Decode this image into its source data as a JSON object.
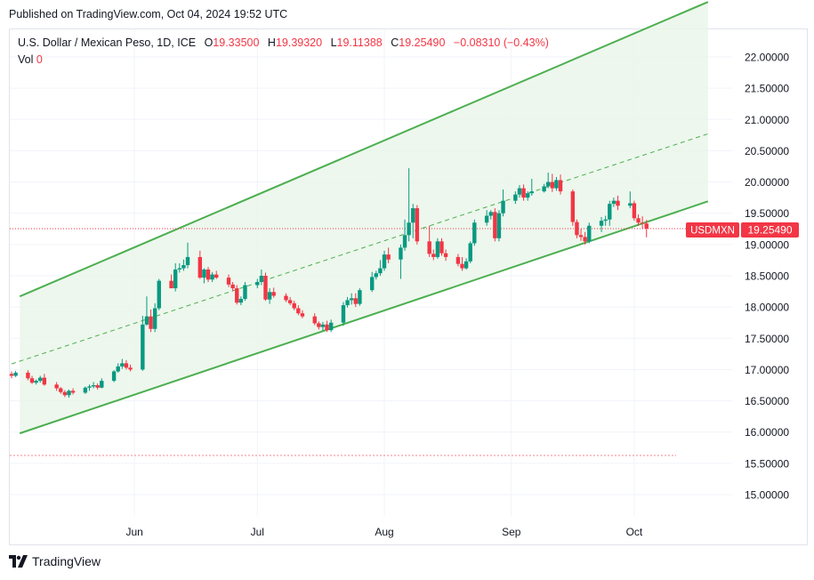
{
  "header": {
    "published": "Published on TradingView.com, Oct 04, 2024 19:52 UTC"
  },
  "legend": {
    "symbol": "U.S. Dollar / Mexican Peso, 1D, ICE",
    "o_label": "O",
    "o": "19.33500",
    "h_label": "H",
    "h": "19.39320",
    "l_label": "L",
    "l": "19.11388",
    "c_label": "C",
    "c": "19.25490",
    "change": "−0.08310 (−0.43%)",
    "vol_label": "Vol",
    "vol": "0"
  },
  "price_tag": {
    "ticker": "USDMXN",
    "price": "19.25490"
  },
  "footer": {
    "brand": "TradingView",
    "logo_icon": "tradingview-logo-icon"
  },
  "colors": {
    "up": "#089981",
    "down": "#f23645",
    "channel": "#4caf50",
    "channel_fill": "#e8f5e9",
    "grid": "#f0f3fa"
  },
  "chart_data": {
    "type": "candlestick",
    "interval": "1D",
    "y_axis": {
      "min": 15.0,
      "max": 22.0,
      "ticks": [
        "22.00000",
        "21.50000",
        "21.00000",
        "20.50000",
        "20.00000",
        "19.50000",
        "19.00000",
        "18.50000",
        "18.00000",
        "17.50000",
        "17.00000",
        "16.50000",
        "16.00000",
        "15.50000",
        "15.00000"
      ]
    },
    "x_axis": {
      "range": [
        "2024-05-02",
        "2024-10-21"
      ],
      "ticks": [
        {
          "label": "Jun",
          "date": "2024-06-01"
        },
        {
          "label": "Jul",
          "date": "2024-07-01"
        },
        {
          "label": "Aug",
          "date": "2024-08-01"
        },
        {
          "label": "Sep",
          "date": "2024-09-01"
        },
        {
          "label": "Oct",
          "date": "2024-10-01"
        }
      ]
    },
    "grid": true,
    "channel": {
      "upper": [
        {
          "date": "2024-05-04",
          "value": 18.17
        },
        {
          "date": "2024-10-19",
          "value": 22.88
        }
      ],
      "middle": [
        {
          "date": "2024-05-02",
          "value": 17.09
        },
        {
          "date": "2024-10-19",
          "value": 20.77
        }
      ],
      "lower": [
        {
          "date": "2024-05-04",
          "value": 15.98
        },
        {
          "date": "2024-10-19",
          "value": 19.69
        }
      ]
    },
    "last_price_line": 19.2549,
    "candles": [
      {
        "date": "2024-05-02",
        "o": 16.93,
        "h": 16.97,
        "l": 16.86,
        "c": 16.9
      },
      {
        "date": "2024-05-03",
        "o": 16.9,
        "h": 16.98,
        "l": 16.88,
        "c": 16.95
      },
      {
        "date": "2024-05-06",
        "o": 16.95,
        "h": 16.99,
        "l": 16.83,
        "c": 16.86
      },
      {
        "date": "2024-05-07",
        "o": 16.86,
        "h": 16.9,
        "l": 16.77,
        "c": 16.79
      },
      {
        "date": "2024-05-08",
        "o": 16.79,
        "h": 16.84,
        "l": 16.76,
        "c": 16.82
      },
      {
        "date": "2024-05-09",
        "o": 16.82,
        "h": 16.9,
        "l": 16.79,
        "c": 16.87
      },
      {
        "date": "2024-05-10",
        "o": 16.87,
        "h": 16.93,
        "l": 16.74,
        "c": 16.76
      },
      {
        "date": "2024-05-13",
        "o": 16.76,
        "h": 16.8,
        "l": 16.66,
        "c": 16.7
      },
      {
        "date": "2024-05-14",
        "o": 16.7,
        "h": 16.72,
        "l": 16.61,
        "c": 16.64
      },
      {
        "date": "2024-05-15",
        "o": 16.64,
        "h": 16.67,
        "l": 16.56,
        "c": 16.59
      },
      {
        "date": "2024-05-16",
        "o": 16.59,
        "h": 16.68,
        "l": 16.55,
        "c": 16.66
      },
      {
        "date": "2024-05-17",
        "o": 16.66,
        "h": 16.7,
        "l": 16.6,
        "c": 16.63
      },
      {
        "date": "2024-05-20",
        "o": 16.63,
        "h": 16.73,
        "l": 16.61,
        "c": 16.71
      },
      {
        "date": "2024-05-21",
        "o": 16.71,
        "h": 16.76,
        "l": 16.66,
        "c": 16.73
      },
      {
        "date": "2024-05-22",
        "o": 16.73,
        "h": 16.8,
        "l": 16.7,
        "c": 16.75
      },
      {
        "date": "2024-05-23",
        "o": 16.75,
        "h": 16.78,
        "l": 16.68,
        "c": 16.71
      },
      {
        "date": "2024-05-24",
        "o": 16.71,
        "h": 16.86,
        "l": 16.7,
        "c": 16.82
      },
      {
        "date": "2024-05-27",
        "o": 16.82,
        "h": 16.99,
        "l": 16.8,
        "c": 16.97
      },
      {
        "date": "2024-05-28",
        "o": 16.97,
        "h": 17.1,
        "l": 16.95,
        "c": 17.05
      },
      {
        "date": "2024-05-29",
        "o": 17.05,
        "h": 17.17,
        "l": 17.01,
        "c": 17.1
      },
      {
        "date": "2024-05-30",
        "o": 17.1,
        "h": 17.15,
        "l": 17.0,
        "c": 17.03
      },
      {
        "date": "2024-05-31",
        "o": 17.03,
        "h": 17.08,
        "l": 16.97,
        "c": 17.0
      },
      {
        "date": "2024-06-03",
        "o": 17.0,
        "h": 17.86,
        "l": 16.98,
        "c": 17.72
      },
      {
        "date": "2024-06-04",
        "o": 17.72,
        "h": 18.17,
        "l": 17.7,
        "c": 17.85
      },
      {
        "date": "2024-06-05",
        "o": 17.85,
        "h": 17.96,
        "l": 17.6,
        "c": 17.65
      },
      {
        "date": "2024-06-06",
        "o": 17.65,
        "h": 18.06,
        "l": 17.6,
        "c": 17.98
      },
      {
        "date": "2024-06-07",
        "o": 17.98,
        "h": 18.45,
        "l": 17.95,
        "c": 18.42
      },
      {
        "date": "2024-06-10",
        "o": 18.42,
        "h": 18.52,
        "l": 18.3,
        "c": 18.3
      },
      {
        "date": "2024-06-11",
        "o": 18.3,
        "h": 18.7,
        "l": 18.25,
        "c": 18.6
      },
      {
        "date": "2024-06-12",
        "o": 18.6,
        "h": 18.7,
        "l": 18.55,
        "c": 18.62
      },
      {
        "date": "2024-06-13",
        "o": 18.62,
        "h": 18.76,
        "l": 18.58,
        "c": 18.67
      },
      {
        "date": "2024-06-14",
        "o": 18.67,
        "h": 19.03,
        "l": 18.62,
        "c": 18.8
      },
      {
        "date": "2024-06-17",
        "o": 18.8,
        "h": 18.9,
        "l": 18.45,
        "c": 18.47
      },
      {
        "date": "2024-06-18",
        "o": 18.47,
        "h": 18.62,
        "l": 18.38,
        "c": 18.6
      },
      {
        "date": "2024-06-19",
        "o": 18.6,
        "h": 18.64,
        "l": 18.4,
        "c": 18.44
      },
      {
        "date": "2024-06-20",
        "o": 18.44,
        "h": 18.56,
        "l": 18.4,
        "c": 18.52
      },
      {
        "date": "2024-06-21",
        "o": 18.52,
        "h": 18.58,
        "l": 18.45,
        "c": 18.47
      },
      {
        "date": "2024-06-24",
        "o": 18.47,
        "h": 18.52,
        "l": 18.32,
        "c": 18.36
      },
      {
        "date": "2024-06-25",
        "o": 18.36,
        "h": 18.4,
        "l": 18.26,
        "c": 18.3
      },
      {
        "date": "2024-06-26",
        "o": 18.3,
        "h": 18.35,
        "l": 18.04,
        "c": 18.07
      },
      {
        "date": "2024-06-27",
        "o": 18.07,
        "h": 18.17,
        "l": 18.03,
        "c": 18.13
      },
      {
        "date": "2024-06-28",
        "o": 18.13,
        "h": 18.4,
        "l": 18.1,
        "c": 18.35
      },
      {
        "date": "2024-07-01",
        "o": 18.35,
        "h": 18.45,
        "l": 18.3,
        "c": 18.4
      },
      {
        "date": "2024-07-02",
        "o": 18.4,
        "h": 18.6,
        "l": 18.35,
        "c": 18.5
      },
      {
        "date": "2024-07-03",
        "o": 18.5,
        "h": 18.55,
        "l": 18.1,
        "c": 18.12
      },
      {
        "date": "2024-07-04",
        "o": 18.12,
        "h": 18.3,
        "l": 18.05,
        "c": 18.24
      },
      {
        "date": "2024-07-05",
        "o": 18.24,
        "h": 18.31,
        "l": 18.15,
        "c": 18.18
      },
      {
        "date": "2024-07-08",
        "o": 18.18,
        "h": 18.22,
        "l": 18.08,
        "c": 18.11
      },
      {
        "date": "2024-07-09",
        "o": 18.11,
        "h": 18.16,
        "l": 18.03,
        "c": 18.06
      },
      {
        "date": "2024-07-10",
        "o": 18.06,
        "h": 18.1,
        "l": 17.95,
        "c": 17.98
      },
      {
        "date": "2024-07-11",
        "o": 17.98,
        "h": 18.03,
        "l": 17.87,
        "c": 17.9
      },
      {
        "date": "2024-07-12",
        "o": 17.9,
        "h": 17.95,
        "l": 17.82,
        "c": 17.85
      },
      {
        "date": "2024-07-15",
        "o": 17.85,
        "h": 17.9,
        "l": 17.71,
        "c": 17.74
      },
      {
        "date": "2024-07-16",
        "o": 17.74,
        "h": 17.77,
        "l": 17.64,
        "c": 17.68
      },
      {
        "date": "2024-07-17",
        "o": 17.68,
        "h": 17.76,
        "l": 17.62,
        "c": 17.72
      },
      {
        "date": "2024-07-18",
        "o": 17.72,
        "h": 17.78,
        "l": 17.6,
        "c": 17.63
      },
      {
        "date": "2024-07-19",
        "o": 17.63,
        "h": 17.8,
        "l": 17.6,
        "c": 17.75
      },
      {
        "date": "2024-07-22",
        "o": 17.75,
        "h": 18.08,
        "l": 17.7,
        "c": 18.03
      },
      {
        "date": "2024-07-23",
        "o": 18.03,
        "h": 18.16,
        "l": 17.99,
        "c": 18.11
      },
      {
        "date": "2024-07-24",
        "o": 18.11,
        "h": 18.22,
        "l": 18.04,
        "c": 18.14
      },
      {
        "date": "2024-07-25",
        "o": 18.14,
        "h": 18.22,
        "l": 18.0,
        "c": 18.05
      },
      {
        "date": "2024-07-26",
        "o": 18.05,
        "h": 18.3,
        "l": 18.02,
        "c": 18.27
      },
      {
        "date": "2024-07-29",
        "o": 18.27,
        "h": 18.56,
        "l": 18.24,
        "c": 18.48
      },
      {
        "date": "2024-07-30",
        "o": 18.48,
        "h": 18.58,
        "l": 18.44,
        "c": 18.54
      },
      {
        "date": "2024-07-31",
        "o": 18.54,
        "h": 18.75,
        "l": 18.5,
        "c": 18.62
      },
      {
        "date": "2024-08-01",
        "o": 18.62,
        "h": 18.9,
        "l": 18.58,
        "c": 18.84
      },
      {
        "date": "2024-08-02",
        "o": 18.84,
        "h": 18.95,
        "l": 18.7,
        "c": 18.76
      },
      {
        "date": "2024-08-05",
        "o": 18.76,
        "h": 19.0,
        "l": 18.45,
        "c": 18.95
      },
      {
        "date": "2024-08-06",
        "o": 18.95,
        "h": 19.4,
        "l": 18.9,
        "c": 19.15
      },
      {
        "date": "2024-08-07",
        "o": 19.15,
        "h": 20.22,
        "l": 19.05,
        "c": 19.35
      },
      {
        "date": "2024-08-08",
        "o": 19.35,
        "h": 19.65,
        "l": 19.1,
        "c": 19.58
      },
      {
        "date": "2024-08-09",
        "o": 19.58,
        "h": 19.63,
        "l": 19.0,
        "c": 19.05
      },
      {
        "date": "2024-08-12",
        "o": 19.05,
        "h": 19.3,
        "l": 18.8,
        "c": 18.85
      },
      {
        "date": "2024-08-13",
        "o": 18.85,
        "h": 18.92,
        "l": 18.75,
        "c": 18.8
      },
      {
        "date": "2024-08-14",
        "o": 18.8,
        "h": 19.1,
        "l": 18.77,
        "c": 19.05
      },
      {
        "date": "2024-08-15",
        "o": 19.05,
        "h": 19.1,
        "l": 18.82,
        "c": 18.86
      },
      {
        "date": "2024-08-16",
        "o": 18.86,
        "h": 18.92,
        "l": 18.74,
        "c": 18.8
      },
      {
        "date": "2024-08-19",
        "o": 18.8,
        "h": 18.85,
        "l": 18.65,
        "c": 18.69
      },
      {
        "date": "2024-08-20",
        "o": 18.69,
        "h": 18.8,
        "l": 18.58,
        "c": 18.62
      },
      {
        "date": "2024-08-21",
        "o": 18.62,
        "h": 18.78,
        "l": 18.6,
        "c": 18.73
      },
      {
        "date": "2024-08-22",
        "o": 18.73,
        "h": 19.05,
        "l": 18.7,
        "c": 19.02
      },
      {
        "date": "2024-08-23",
        "o": 19.02,
        "h": 19.4,
        "l": 18.98,
        "c": 19.35
      },
      {
        "date": "2024-08-26",
        "o": 19.35,
        "h": 19.55,
        "l": 19.3,
        "c": 19.46
      },
      {
        "date": "2024-08-27",
        "o": 19.46,
        "h": 19.55,
        "l": 19.4,
        "c": 19.52
      },
      {
        "date": "2024-08-28",
        "o": 19.52,
        "h": 19.58,
        "l": 19.05,
        "c": 19.1
      },
      {
        "date": "2024-08-29",
        "o": 19.1,
        "h": 19.55,
        "l": 19.05,
        "c": 19.5
      },
      {
        "date": "2024-08-30",
        "o": 19.5,
        "h": 19.88,
        "l": 19.45,
        "c": 19.7
      },
      {
        "date": "2024-09-02",
        "o": 19.7,
        "h": 19.85,
        "l": 19.65,
        "c": 19.8
      },
      {
        "date": "2024-09-03",
        "o": 19.8,
        "h": 19.95,
        "l": 19.75,
        "c": 19.9
      },
      {
        "date": "2024-09-04",
        "o": 19.9,
        "h": 19.96,
        "l": 19.7,
        "c": 19.75
      },
      {
        "date": "2024-09-05",
        "o": 19.75,
        "h": 19.85,
        "l": 19.7,
        "c": 19.82
      },
      {
        "date": "2024-09-06",
        "o": 19.82,
        "h": 20.05,
        "l": 19.78,
        "c": 19.85
      },
      {
        "date": "2024-09-09",
        "o": 19.85,
        "h": 19.97,
        "l": 19.83,
        "c": 19.93
      },
      {
        "date": "2024-09-10",
        "o": 19.93,
        "h": 20.15,
        "l": 19.9,
        "c": 20.0
      },
      {
        "date": "2024-09-11",
        "o": 20.0,
        "h": 20.13,
        "l": 19.84,
        "c": 19.9
      },
      {
        "date": "2024-09-12",
        "o": 19.9,
        "h": 20.08,
        "l": 19.86,
        "c": 20.03
      },
      {
        "date": "2024-09-13",
        "o": 20.03,
        "h": 20.12,
        "l": 19.8,
        "c": 19.85
      },
      {
        "date": "2024-09-16",
        "o": 19.85,
        "h": 19.88,
        "l": 19.3,
        "c": 19.36
      },
      {
        "date": "2024-09-17",
        "o": 19.36,
        "h": 19.4,
        "l": 19.1,
        "c": 19.15
      },
      {
        "date": "2024-09-18",
        "o": 19.15,
        "h": 19.25,
        "l": 19.06,
        "c": 19.12
      },
      {
        "date": "2024-09-19",
        "o": 19.12,
        "h": 19.2,
        "l": 19.0,
        "c": 19.05
      },
      {
        "date": "2024-09-20",
        "o": 19.05,
        "h": 19.35,
        "l": 19.02,
        "c": 19.3
      },
      {
        "date": "2024-09-23",
        "o": 19.3,
        "h": 19.44,
        "l": 19.2,
        "c": 19.38
      },
      {
        "date": "2024-09-24",
        "o": 19.38,
        "h": 19.46,
        "l": 19.3,
        "c": 19.4
      },
      {
        "date": "2024-09-25",
        "o": 19.4,
        "h": 19.7,
        "l": 19.3,
        "c": 19.65
      },
      {
        "date": "2024-09-26",
        "o": 19.65,
        "h": 19.75,
        "l": 19.6,
        "c": 19.7
      },
      {
        "date": "2024-09-27",
        "o": 19.7,
        "h": 19.78,
        "l": 19.55,
        "c": 19.62
      },
      {
        "date": "2024-09-30",
        "o": 19.62,
        "h": 19.85,
        "l": 19.58,
        "c": 19.66
      },
      {
        "date": "2024-10-01",
        "o": 19.66,
        "h": 19.7,
        "l": 19.38,
        "c": 19.42
      },
      {
        "date": "2024-10-02",
        "o": 19.42,
        "h": 19.48,
        "l": 19.3,
        "c": 19.35
      },
      {
        "date": "2024-10-03",
        "o": 19.35,
        "h": 19.45,
        "l": 19.25,
        "c": 19.34
      },
      {
        "date": "2024-10-04",
        "o": 19.335,
        "h": 19.3932,
        "l": 19.11388,
        "c": 19.2549
      }
    ]
  }
}
